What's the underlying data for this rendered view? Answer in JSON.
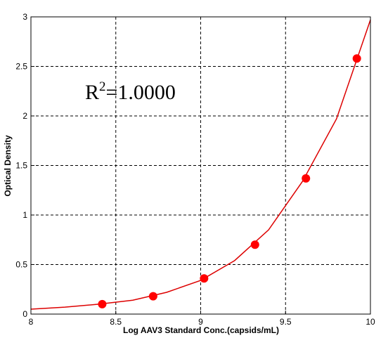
{
  "chart_data": {
    "type": "scatter",
    "xlabel": "Log AAV3 Standard Conc.(capsids/mL)",
    "ylabel": "Optical Density",
    "xlim": [
      8,
      10
    ],
    "ylim": [
      0,
      3
    ],
    "x_ticks": [
      "8",
      "8.5",
      "9",
      "9.5",
      "10"
    ],
    "y_ticks": [
      "0",
      "0.5",
      "1",
      "1.5",
      "2",
      "2.5",
      "3"
    ],
    "grid": true,
    "series": [
      {
        "points": [
          {
            "x": 8.42,
            "y": 0.1
          },
          {
            "x": 8.72,
            "y": 0.18
          },
          {
            "x": 9.02,
            "y": 0.36
          },
          {
            "x": 9.32,
            "y": 0.7
          },
          {
            "x": 9.62,
            "y": 1.37
          },
          {
            "x": 9.92,
            "y": 2.58
          }
        ]
      }
    ],
    "fit_curve": {
      "type": "exponential",
      "x": [
        8,
        8.2,
        8.4,
        8.6,
        8.8,
        9.0,
        9.2,
        9.4,
        9.6,
        9.8,
        10.0
      ],
      "y": [
        0.05,
        0.07,
        0.1,
        0.14,
        0.22,
        0.34,
        0.54,
        0.85,
        1.34,
        1.97,
        2.97
      ]
    },
    "annotation": {
      "base": "R",
      "superscript": "2",
      "rest": "=1.0000"
    },
    "colors": {
      "series": "#ff0000",
      "fit": "#dd0000",
      "grid": "#000000",
      "background": "#ffffff"
    }
  }
}
